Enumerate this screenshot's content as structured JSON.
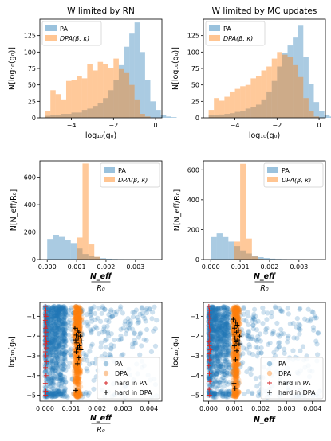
{
  "colors": {
    "pa": "#1f77b4",
    "dpa": "#ff7f0e",
    "hard_pa": "#d62728",
    "hard_dpa": "#000000"
  },
  "chart_data": [
    {
      "id": "hist-g0-rn",
      "type": "bar",
      "title": "W limited by RN",
      "xlabel": "log₁₀(g₀)",
      "ylabel": "N[log₁₀(g₀)]",
      "xlim": [
        -5.5,
        0.3
      ],
      "ylim": [
        0,
        150
      ],
      "xticks": [
        -4,
        -2,
        0
      ],
      "xtick_labels": [
        "−4",
        "−2",
        "0"
      ],
      "yticks": [
        0,
        25,
        50,
        75,
        100,
        125
      ],
      "bin_width": 0.25,
      "legend": {
        "placement": "top-left",
        "entries": [
          {
            "label": "PA",
            "italic": false
          },
          {
            "label": "DPA(β, κ)",
            "italic": true
          }
        ]
      },
      "series": [
        {
          "name": "PA",
          "bin_start": -5.25,
          "values": [
            3,
            4,
            4,
            6,
            6,
            8,
            8,
            12,
            14,
            18,
            22,
            30,
            42,
            58,
            80,
            108,
            128,
            145,
            100,
            58,
            25,
            12,
            4,
            2,
            1
          ]
        },
        {
          "name": "DPA(β, κ)",
          "bin_start": -5.25,
          "values": [
            10,
            42,
            36,
            28,
            56,
            58,
            64,
            60,
            82,
            72,
            85,
            82,
            75,
            90,
            74,
            68,
            50,
            28,
            6,
            2,
            0,
            0,
            0,
            0,
            0
          ]
        }
      ]
    },
    {
      "id": "hist-g0-mc",
      "type": "bar",
      "title": "W limited by MC updates",
      "xlabel": "log₁₀(g₀)",
      "ylabel": "N[log₁₀(g₀)]",
      "xlim": [
        -5.5,
        0.3
      ],
      "ylim": [
        0,
        150
      ],
      "xticks": [
        -4,
        -2,
        0
      ],
      "xtick_labels": [
        "−4",
        "−2",
        "0"
      ],
      "yticks": [
        0,
        25,
        50,
        75,
        100,
        125
      ],
      "bin_width": 0.25,
      "legend": {
        "placement": "top-left",
        "entries": [
          {
            "label": "PA",
            "italic": false
          },
          {
            "label": "DPA(β, κ)",
            "italic": true
          }
        ]
      },
      "series": [
        {
          "name": "PA",
          "bin_start": -5.25,
          "values": [
            4,
            4,
            5,
            6,
            7,
            9,
            10,
            14,
            16,
            20,
            28,
            40,
            56,
            78,
            98,
            110,
            122,
            140,
            92,
            52,
            24,
            10,
            4,
            2,
            1
          ]
        },
        {
          "name": "DPA(β, κ)",
          "bin_start": -5.25,
          "values": [
            12,
            30,
            26,
            32,
            40,
            44,
            48,
            50,
            60,
            64,
            72,
            78,
            90,
            100,
            96,
            92,
            80,
            62,
            30,
            10,
            2,
            0,
            0,
            0,
            0
          ]
        }
      ]
    },
    {
      "id": "hist-neff-rn",
      "type": "bar",
      "title": "",
      "xlabel": "N_eff / R₀",
      "ylabel": "N[N_eff/R₀]",
      "xlim": [
        -0.00025,
        0.0039
      ],
      "ylim": [
        0,
        720
      ],
      "xticks": [
        0,
        0.001,
        0.002,
        0.003
      ],
      "xtick_labels": [
        "0.000",
        "0.001",
        "0.002",
        "0.003"
      ],
      "yticks": [
        0,
        200,
        400,
        600
      ],
      "bin_width": 0.0002,
      "legend": {
        "placement": "top-right",
        "entries": [
          {
            "label": "PA",
            "italic": false
          },
          {
            "label": "DPA(β, κ)",
            "italic": true
          }
        ]
      },
      "series": [
        {
          "name": "PA",
          "bin_start": 0,
          "values": [
            150,
            180,
            165,
            140,
            120,
            80,
            40,
            28,
            18,
            10,
            6,
            4,
            3,
            2,
            1,
            1,
            0,
            0,
            0
          ]
        },
        {
          "name": "DPA(β, κ)",
          "bin_start": 0,
          "values": [
            0,
            0,
            0,
            0,
            0,
            160,
            700,
            110,
            20,
            4,
            0,
            0,
            0,
            0,
            0,
            0,
            0,
            0,
            0
          ]
        }
      ]
    },
    {
      "id": "hist-neff-mc",
      "type": "bar",
      "title": "",
      "xlabel": "N_eff / R₀",
      "ylabel": "N[N_eff/R₀]",
      "xlim": [
        -0.00025,
        0.0039
      ],
      "ylim": [
        0,
        660
      ],
      "xticks": [
        0,
        0.001,
        0.002,
        0.003
      ],
      "xtick_labels": [
        "0.000",
        "0.001",
        "0.002",
        "0.003"
      ],
      "yticks": [
        0,
        200,
        400,
        600
      ],
      "bin_width": 0.0002,
      "legend": {
        "placement": "top-right",
        "entries": [
          {
            "label": "PA",
            "italic": false
          },
          {
            "label": "DPA(β, κ)",
            "italic": true
          }
        ]
      },
      "series": [
        {
          "name": "PA",
          "bin_start": 0,
          "values": [
            150,
            175,
            150,
            120,
            90,
            60,
            40,
            25,
            16,
            10,
            6,
            4,
            3,
            2,
            1,
            1,
            0,
            0,
            0
          ]
        },
        {
          "name": "DPA(β, κ)",
          "bin_start": 0,
          "values": [
            0,
            0,
            0,
            0,
            120,
            640,
            140,
            20,
            4,
            0,
            0,
            0,
            0,
            0,
            0,
            0,
            0,
            0,
            0
          ]
        }
      ]
    },
    {
      "id": "scatter-rn",
      "type": "scatter",
      "title": "",
      "xlabel": "N_eff / R₀",
      "ylabel": "log₁₀[g₀]",
      "xlim": [
        -0.0002,
        0.0045
      ],
      "ylim": [
        -5.3,
        -0.3
      ],
      "xticks": [
        0,
        0.001,
        0.002,
        0.003,
        0.004
      ],
      "xtick_labels": [
        "0.000",
        "0.001",
        "0.002",
        "0.003",
        "0.004"
      ],
      "yticks": [
        -1,
        -2,
        -3,
        -4,
        -5
      ],
      "ytick_labels": [
        "−1",
        "−2",
        "−3",
        "−4",
        "−5"
      ],
      "legend": {
        "placement": "lower-right",
        "entries": [
          "PA",
          "DPA",
          "hard in PA",
          "hard in DPA"
        ]
      },
      "clouds": [
        {
          "name": "PA",
          "x_center": 0.0005,
          "x_spread": 0.0006,
          "x_min": 0,
          "x_max": 0.0043,
          "y_min": -5.1,
          "y_max": -0.5,
          "count": 1100,
          "seed": 11
        },
        {
          "name": "DPA",
          "x_center": 0.00125,
          "x_spread": 0.0001,
          "x_min": 0.0009,
          "x_max": 0.0016,
          "y_min": -5.1,
          "y_max": -0.5,
          "count": 650,
          "seed": 23
        }
      ],
      "hard_in_PA": [
        [
          1e-05,
          -0.5
        ],
        [
          3e-05,
          -0.7
        ],
        [
          2e-05,
          -0.9
        ],
        [
          4e-05,
          -1.0
        ],
        [
          1e-05,
          -1.2
        ],
        [
          3e-05,
          -1.3
        ],
        [
          5e-05,
          -1.5
        ],
        [
          2e-05,
          -1.6
        ],
        [
          4e-05,
          -1.8
        ],
        [
          1e-05,
          -2.0
        ],
        [
          3e-05,
          -2.1
        ],
        [
          6e-05,
          -2.3
        ],
        [
          2e-05,
          -2.4
        ],
        [
          4e-05,
          -2.6
        ],
        [
          1e-05,
          -2.8
        ],
        [
          3e-05,
          -3.0
        ],
        [
          5e-05,
          -3.3
        ],
        [
          2e-05,
          -3.6
        ],
        [
          4e-05,
          -4.0
        ],
        [
          1e-05,
          -4.4
        ],
        [
          3e-05,
          -4.8
        ],
        [
          2e-05,
          -5.0
        ]
      ],
      "hard_in_DPA": [
        [
          0.00115,
          -1.6
        ],
        [
          0.00125,
          -1.7
        ],
        [
          0.0013,
          -1.8
        ],
        [
          0.0012,
          -1.95
        ],
        [
          0.00135,
          -2.0
        ],
        [
          0.00128,
          -2.1
        ],
        [
          0.00118,
          -2.2
        ],
        [
          0.0014,
          -2.25
        ],
        [
          0.00122,
          -2.35
        ],
        [
          0.00132,
          -2.5
        ],
        [
          0.00126,
          -2.6
        ],
        [
          0.00138,
          -2.7
        ],
        [
          0.0012,
          -2.8
        ],
        [
          0.0013,
          -3.1
        ],
        [
          0.00124,
          -3.4
        ],
        [
          0.00118,
          -4.75
        ]
      ]
    },
    {
      "id": "scatter-mc",
      "type": "scatter",
      "title": "",
      "xlabel": "N_eff",
      "ylabel": "log₁₀[g₀]",
      "xlim": [
        -0.0002,
        0.0045
      ],
      "ylim": [
        -5.3,
        -0.3
      ],
      "xticks": [
        0,
        0.001,
        0.002,
        0.003,
        0.004
      ],
      "xtick_labels": [
        "0.000",
        "0.001",
        "0.002",
        "0.003",
        "0.004"
      ],
      "yticks": [
        -1,
        -2,
        -3,
        -4,
        -5
      ],
      "ytick_labels": [
        "−1",
        "−2",
        "−3",
        "−4",
        "−5"
      ],
      "legend": {
        "placement": "lower-right",
        "entries": [
          "PA",
          "DPA",
          "hard in PA",
          "hard in DPA"
        ]
      },
      "clouds": [
        {
          "name": "PA",
          "x_center": 0.0005,
          "x_spread": 0.0006,
          "x_min": 0,
          "x_max": 0.0043,
          "y_min": -5.1,
          "y_max": -0.5,
          "count": 1100,
          "seed": 37
        },
        {
          "name": "DPA",
          "x_center": 0.00105,
          "x_spread": 0.0001,
          "x_min": 0.0007,
          "x_max": 0.0014,
          "y_min": -5.1,
          "y_max": -0.5,
          "count": 650,
          "seed": 41
        }
      ],
      "hard_in_PA": [
        [
          1e-05,
          -0.5
        ],
        [
          3e-05,
          -0.7
        ],
        [
          2e-05,
          -0.9
        ],
        [
          4e-05,
          -1.1
        ],
        [
          1e-05,
          -1.3
        ],
        [
          3e-05,
          -1.5
        ],
        [
          5e-05,
          -1.7
        ],
        [
          2e-05,
          -1.9
        ],
        [
          4e-05,
          -2.1
        ],
        [
          1e-05,
          -2.3
        ],
        [
          3e-05,
          -2.5
        ],
        [
          6e-05,
          -2.7
        ],
        [
          2e-05,
          -2.9
        ],
        [
          4e-05,
          -3.2
        ],
        [
          1e-05,
          -3.5
        ],
        [
          3e-05,
          -3.9
        ],
        [
          5e-05,
          -4.3
        ],
        [
          2e-05,
          -4.7
        ],
        [
          4e-05,
          -5.0
        ]
      ],
      "hard_in_DPA": [
        [
          0.00095,
          -1.15
        ],
        [
          0.00105,
          -1.3
        ],
        [
          0.0011,
          -1.45
        ],
        [
          0.001,
          -1.6
        ],
        [
          0.00115,
          -1.7
        ],
        [
          0.00108,
          -1.8
        ],
        [
          0.00098,
          -1.9
        ],
        [
          0.0012,
          -2.0
        ],
        [
          0.00102,
          -2.1
        ],
        [
          0.00112,
          -2.2
        ],
        [
          0.00106,
          -2.3
        ],
        [
          0.00118,
          -2.4
        ],
        [
          0.001,
          -2.5
        ],
        [
          0.00109,
          -2.75
        ],
        [
          0.00104,
          -3.2
        ],
        [
          0.00098,
          -4.4
        ],
        [
          0.00102,
          -4.65
        ]
      ]
    }
  ]
}
